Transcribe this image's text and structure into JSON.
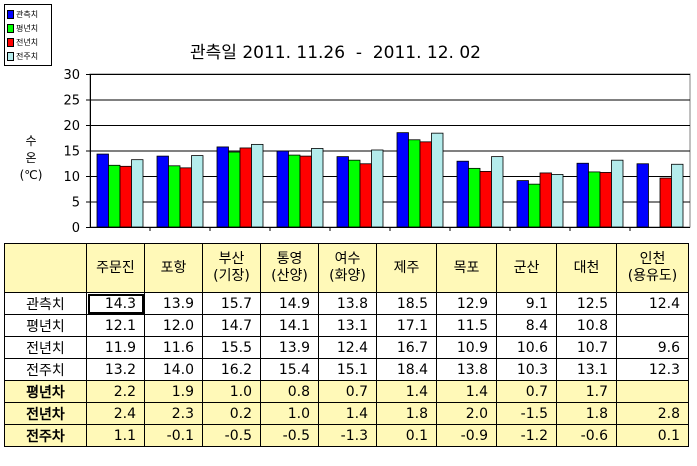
{
  "chart_data": {
    "type": "bar",
    "title": "관측일 2011. 11.26  -  2011. 12. 02",
    "ylabel": [
      "수",
      "온",
      "(℃)"
    ],
    "ylim": [
      0,
      30
    ],
    "yticks": [
      0,
      5,
      10,
      15,
      20,
      25,
      30
    ],
    "grid": true,
    "legend_position": "top-left",
    "categories": [
      "주문진",
      "포항",
      "부산 (기장)",
      "통영 (산양)",
      "여수 (화양)",
      "제주",
      "목포",
      "군산",
      "대천",
      "인천 (용유도)"
    ],
    "series": [
      {
        "name": "관측치",
        "color": "#0000ff",
        "values": [
          14.3,
          13.9,
          15.7,
          14.9,
          13.8,
          18.5,
          12.9,
          9.1,
          12.5,
          12.4
        ]
      },
      {
        "name": "평년치",
        "color": "#00ff00",
        "values": [
          12.1,
          12.0,
          14.7,
          14.1,
          13.1,
          17.1,
          11.5,
          8.4,
          10.8,
          null
        ]
      },
      {
        "name": "전년치",
        "color": "#ff0000",
        "values": [
          11.9,
          11.6,
          15.5,
          13.9,
          12.4,
          16.7,
          10.9,
          10.6,
          10.7,
          9.6
        ]
      },
      {
        "name": "전주치",
        "color": "#b4ecec",
        "values": [
          13.2,
          14.0,
          16.2,
          15.4,
          15.1,
          18.4,
          13.8,
          10.3,
          13.1,
          12.3
        ]
      }
    ]
  },
  "table": {
    "columns": [
      [
        "주문진"
      ],
      [
        "포항"
      ],
      [
        "부산",
        "(기장)"
      ],
      [
        "통영",
        "(산양)"
      ],
      [
        "여수",
        "(화양)"
      ],
      [
        "제주"
      ],
      [
        "목포"
      ],
      [
        "군산"
      ],
      [
        "대천"
      ],
      [
        "인천",
        "(용유도)"
      ]
    ],
    "rows": [
      {
        "label": "관측치",
        "diff": false,
        "values": [
          "14.3",
          "13.9",
          "15.7",
          "14.9",
          "13.8",
          "18.5",
          "12.9",
          "9.1",
          "12.5",
          "12.4"
        ]
      },
      {
        "label": "평년치",
        "diff": false,
        "values": [
          "12.1",
          "12.0",
          "14.7",
          "14.1",
          "13.1",
          "17.1",
          "11.5",
          "8.4",
          "10.8",
          ""
        ]
      },
      {
        "label": "전년치",
        "diff": false,
        "values": [
          "11.9",
          "11.6",
          "15.5",
          "13.9",
          "12.4",
          "16.7",
          "10.9",
          "10.6",
          "10.7",
          "9.6"
        ]
      },
      {
        "label": "전주치",
        "diff": false,
        "values": [
          "13.2",
          "14.0",
          "16.2",
          "15.4",
          "15.1",
          "18.4",
          "13.8",
          "10.3",
          "13.1",
          "12.3"
        ]
      },
      {
        "label": "평년차",
        "diff": true,
        "values": [
          "2.2",
          "1.9",
          "1.0",
          "0.8",
          "0.7",
          "1.4",
          "1.4",
          "0.7",
          "1.7",
          ""
        ]
      },
      {
        "label": "전년차",
        "diff": true,
        "values": [
          "2.4",
          "2.3",
          "0.2",
          "1.0",
          "1.4",
          "1.8",
          "2.0",
          "-1.5",
          "1.8",
          "2.8"
        ]
      },
      {
        "label": "전주차",
        "diff": true,
        "values": [
          "1.1",
          "-0.1",
          "-0.5",
          "-0.5",
          "-1.3",
          "0.1",
          "-0.9",
          "-1.2",
          "-0.6",
          "0.1"
        ]
      }
    ]
  }
}
